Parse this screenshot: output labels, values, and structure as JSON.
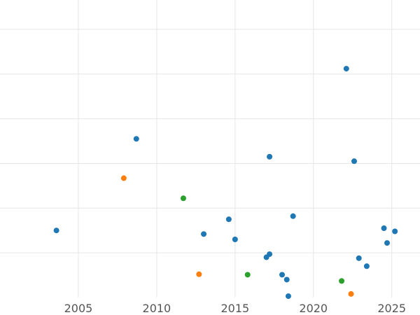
{
  "chart_data": {
    "type": "scatter",
    "title": "",
    "xlabel": "",
    "ylabel": "",
    "grid": true,
    "legend": "none",
    "xlim": [
      2000.0,
      2026.8
    ],
    "ylim": [
      0,
      6.5
    ],
    "x_ticks": [
      2005,
      2010,
      2015,
      2020,
      2025
    ],
    "y_gridlines": [
      1,
      2,
      3,
      4,
      5,
      6
    ],
    "series": [
      {
        "color": "#1f77b4",
        "points": [
          {
            "x": 2003.6,
            "y": 1.5
          },
          {
            "x": 2008.7,
            "y": 3.55
          },
          {
            "x": 2013.0,
            "y": 1.42
          },
          {
            "x": 2014.6,
            "y": 1.75
          },
          {
            "x": 2015.0,
            "y": 1.3
          },
          {
            "x": 2017.0,
            "y": 0.9
          },
          {
            "x": 2017.2,
            "y": 0.97
          },
          {
            "x": 2017.2,
            "y": 3.15
          },
          {
            "x": 2018.0,
            "y": 0.51
          },
          {
            "x": 2018.3,
            "y": 0.4
          },
          {
            "x": 2018.4,
            "y": 0.03
          },
          {
            "x": 2018.7,
            "y": 1.82
          },
          {
            "x": 2022.1,
            "y": 5.12
          },
          {
            "x": 2022.6,
            "y": 3.05
          },
          {
            "x": 2022.9,
            "y": 0.88
          },
          {
            "x": 2023.4,
            "y": 0.7
          },
          {
            "x": 2024.5,
            "y": 1.55
          },
          {
            "x": 2024.7,
            "y": 1.22
          },
          {
            "x": 2025.2,
            "y": 1.48
          }
        ]
      },
      {
        "color": "#ff7f0e",
        "points": [
          {
            "x": 2007.9,
            "y": 2.67
          },
          {
            "x": 2012.7,
            "y": 0.52
          },
          {
            "x": 2022.4,
            "y": 0.08
          }
        ]
      },
      {
        "color": "#2ca02c",
        "points": [
          {
            "x": 2011.7,
            "y": 2.22
          },
          {
            "x": 2015.8,
            "y": 0.51
          },
          {
            "x": 2021.8,
            "y": 0.37
          }
        ]
      }
    ]
  }
}
